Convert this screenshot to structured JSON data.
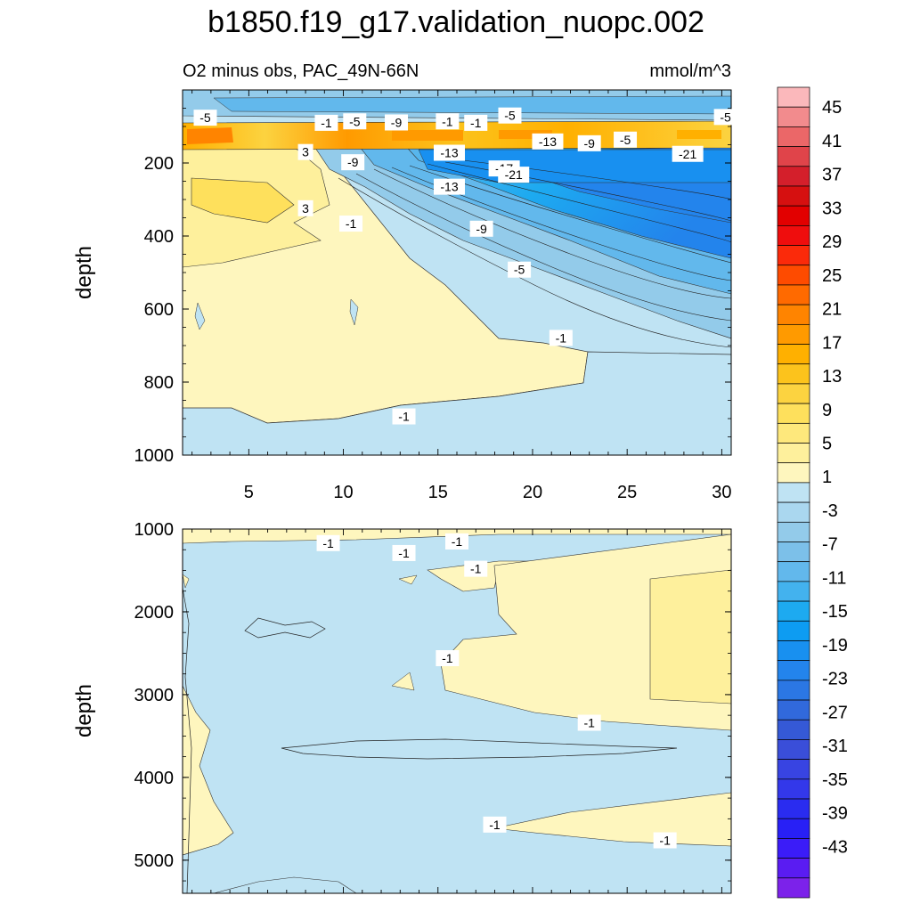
{
  "title": "b1850.f19_g17.validation_nuopc.002",
  "subtitle_left": "O2 minus obs, PAC_49N-66N",
  "units": "mmol/m^3",
  "chart_data": [
    {
      "type": "heatmap",
      "panel": "upper",
      "ylabel": "depth",
      "xlabel": "",
      "x_ticks": [
        5,
        10,
        15,
        20,
        25,
        30
      ],
      "xlim": [
        1.5,
        30.5
      ],
      "y_ticks": [
        200,
        400,
        600,
        800,
        1000
      ],
      "ylim": [
        1000,
        0
      ],
      "contour_labels": [
        {
          "text": "-5",
          "x": 2.7,
          "y": 76
        },
        {
          "text": "-1",
          "x": 9.1,
          "y": 90
        },
        {
          "text": "-5",
          "x": 10.6,
          "y": 86
        },
        {
          "text": "-9",
          "x": 12.8,
          "y": 89
        },
        {
          "text": "-1",
          "x": 15.5,
          "y": 86
        },
        {
          "text": "-1",
          "x": 17.0,
          "y": 90
        },
        {
          "text": "-5",
          "x": 18.8,
          "y": 70
        },
        {
          "text": "-5",
          "x": 30.2,
          "y": 74
        },
        {
          "text": "3",
          "x": 8.0,
          "y": 170
        },
        {
          "text": "-13",
          "x": 15.6,
          "y": 172
        },
        {
          "text": "-13",
          "x": 20.8,
          "y": 141
        },
        {
          "text": "-9",
          "x": 23.0,
          "y": 146
        },
        {
          "text": "-5",
          "x": 24.9,
          "y": 136
        },
        {
          "text": "-21",
          "x": 28.2,
          "y": 175
        },
        {
          "text": "-9",
          "x": 10.5,
          "y": 198
        },
        {
          "text": "-17",
          "x": 18.5,
          "y": 215
        },
        {
          "text": "-21",
          "x": 19.0,
          "y": 232
        },
        {
          "text": "-13",
          "x": 15.6,
          "y": 265
        },
        {
          "text": "3",
          "x": 8.0,
          "y": 324
        },
        {
          "text": "-1",
          "x": 10.4,
          "y": 366
        },
        {
          "text": "-9",
          "x": 17.3,
          "y": 380
        },
        {
          "text": "-5",
          "x": 19.3,
          "y": 492
        },
        {
          "text": "-1",
          "x": 21.5,
          "y": 679
        },
        {
          "text": "-1",
          "x": 13.2,
          "y": 894
        }
      ]
    },
    {
      "type": "heatmap",
      "panel": "lower",
      "ylabel": "depth",
      "xlabel": "",
      "y_ticks": [
        1000,
        2000,
        3000,
        4000,
        5000
      ],
      "ylim": [
        5400,
        1000
      ],
      "xlim": [
        1.5,
        30.5
      ],
      "contour_labels": [
        {
          "text": "-1",
          "x": 9.2,
          "y": 1170
        },
        {
          "text": "-1",
          "x": 13.2,
          "y": 1290
        },
        {
          "text": "-1",
          "x": 16.0,
          "y": 1150
        },
        {
          "text": "-1",
          "x": 17.0,
          "y": 1480
        },
        {
          "text": "-1",
          "x": 15.5,
          "y": 2560
        },
        {
          "text": "-1",
          "x": 23.0,
          "y": 3340
        },
        {
          "text": "-1",
          "x": 18.0,
          "y": 4570
        },
        {
          "text": "-1",
          "x": 27.0,
          "y": 4760
        }
      ]
    }
  ],
  "colorbar": {
    "labels": [
      "45",
      "41",
      "37",
      "33",
      "29",
      "25",
      "21",
      "17",
      "13",
      "9",
      "5",
      "1",
      "-3",
      "-7",
      "-11",
      "-15",
      "-19",
      "-23",
      "-27",
      "-31",
      "-35",
      "-39",
      "-43"
    ],
    "colors": [
      "#fbb8bb",
      "#f28b8d",
      "#eb6768",
      "#e0444a",
      "#d41f2b",
      "#d61010",
      "#e20000",
      "#ef0d0d",
      "#fb2a0a",
      "#fe4b00",
      "#ff6a00",
      "#ff8400",
      "#ff9a00",
      "#ffb000",
      "#fcc31c",
      "#fcd340",
      "#fee05c",
      "#fee87c",
      "#fef09c",
      "#fef6be",
      "#bfe3f3",
      "#aad7ef",
      "#93cbea",
      "#7cc0e9",
      "#62b8ec",
      "#43b2ee",
      "#1daaf0",
      "#0d9cf2",
      "#1890f0",
      "#2384ec",
      "#2b77e4",
      "#3169dc",
      "#3559d6",
      "#3a4ed9",
      "#3844e2",
      "#3338ea",
      "#2a2cf0",
      "#2820f6",
      "#3b1cf8",
      "#5a1cf2",
      "#7c22ea"
    ]
  }
}
